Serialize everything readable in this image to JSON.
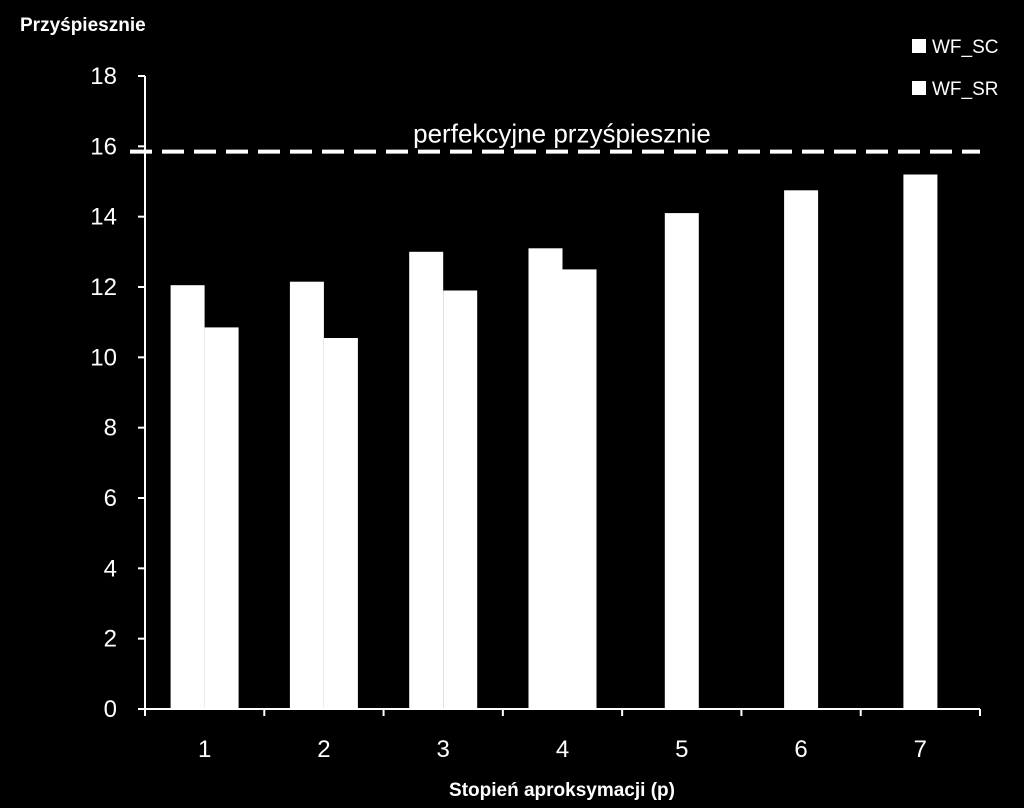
{
  "chart_data": {
    "type": "bar",
    "ylabel": "Przyśpiesznie",
    "xlabel": "Stopień aproksymacji (p)",
    "categories": [
      "1",
      "2",
      "3",
      "4",
      "5",
      "6",
      "7"
    ],
    "series": [
      {
        "name": "WF_SC",
        "values": [
          12.05,
          12.15,
          13.0,
          13.1,
          null,
          null,
          null
        ],
        "color": "#ffffff"
      },
      {
        "name": "WF_SR",
        "values": [
          10.85,
          10.55,
          11.9,
          12.5,
          14.1,
          14.75,
          15.2
        ],
        "color": "#ffffff"
      }
    ],
    "ylim": [
      0,
      18
    ],
    "yticks": [
      0,
      2,
      4,
      6,
      8,
      10,
      12,
      14,
      16,
      18
    ],
    "reference_line": {
      "value": 15.85,
      "label": "perfekcyjne przyśpiesznie",
      "style": "dashed"
    },
    "legend_position": "top-right",
    "grid": false
  }
}
